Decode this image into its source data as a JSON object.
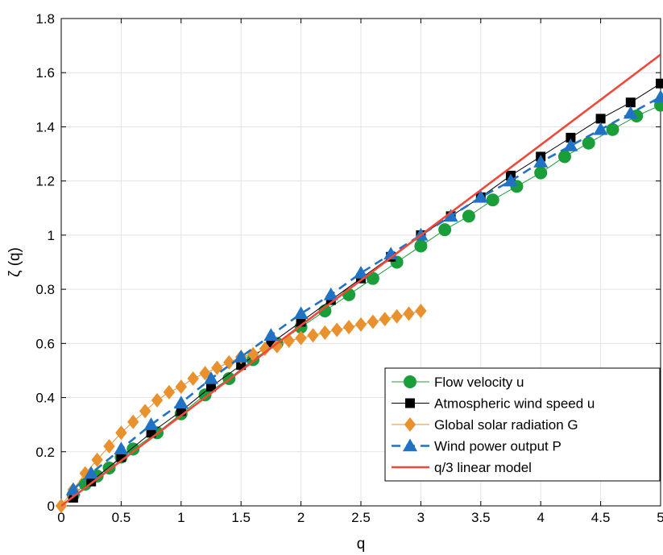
{
  "chart_data": {
    "type": "line",
    "title": "",
    "xlabel": "q",
    "ylabel": "ζ (q)",
    "xlim": [
      0,
      5
    ],
    "ylim": [
      0,
      1.8
    ],
    "xticks": [
      0,
      0.5,
      1,
      1.5,
      2,
      2.5,
      3,
      3.5,
      4,
      4.5,
      5
    ],
    "xtick_labels": [
      "0",
      "0.5",
      "1",
      "1.5",
      "2",
      "2.5",
      "3",
      "3.5",
      "4",
      "4.5",
      "5"
    ],
    "yticks": [
      0,
      0.2,
      0.4,
      0.6,
      0.8,
      1,
      1.2,
      1.4,
      1.6,
      1.8
    ],
    "ytick_labels": [
      "0",
      "0.2",
      "0.4",
      "0.6",
      "0.8",
      "1",
      "1.2",
      "1.4",
      "1.6",
      "1.8"
    ],
    "grid": true,
    "legend_position": "bottom-right",
    "series": [
      {
        "name": "Flow velocity u",
        "color": "#1a9e3a",
        "marker": "circle",
        "line_style": "solid",
        "x": [
          0.1,
          0.2,
          0.3,
          0.4,
          0.5,
          0.6,
          0.8,
          1.0,
          1.2,
          1.4,
          1.6,
          1.8,
          2.0,
          2.2,
          2.4,
          2.6,
          2.8,
          3.0,
          3.2,
          3.4,
          3.6,
          3.8,
          4.0,
          4.2,
          4.4,
          4.6,
          4.8,
          5.0
        ],
        "y": [
          0.04,
          0.08,
          0.11,
          0.14,
          0.18,
          0.21,
          0.27,
          0.34,
          0.41,
          0.47,
          0.54,
          0.6,
          0.66,
          0.72,
          0.78,
          0.84,
          0.9,
          0.96,
          1.02,
          1.07,
          1.13,
          1.18,
          1.23,
          1.29,
          1.34,
          1.39,
          1.44,
          1.48
        ]
      },
      {
        "name": "Atmospheric wind speed u",
        "color": "#000000",
        "marker": "square",
        "line_style": "solid",
        "x": [
          0.1,
          0.25,
          0.5,
          0.75,
          1.0,
          1.25,
          1.5,
          1.75,
          2.0,
          2.25,
          2.5,
          2.75,
          3.0,
          3.25,
          3.5,
          3.75,
          4.0,
          4.25,
          4.5,
          4.75,
          5.0
        ],
        "y": [
          0.03,
          0.09,
          0.18,
          0.27,
          0.35,
          0.44,
          0.52,
          0.6,
          0.68,
          0.76,
          0.84,
          0.92,
          1.0,
          1.07,
          1.14,
          1.22,
          1.29,
          1.36,
          1.43,
          1.49,
          1.56
        ]
      },
      {
        "name": "Global solar radiation G",
        "color": "#e8912e",
        "marker": "diamond",
        "line_style": "solid",
        "x": [
          0.0,
          0.1,
          0.2,
          0.3,
          0.4,
          0.5,
          0.6,
          0.7,
          0.8,
          0.9,
          1.0,
          1.1,
          1.2,
          1.3,
          1.4,
          1.5,
          1.6,
          1.7,
          1.8,
          1.9,
          2.0,
          2.1,
          2.2,
          2.3,
          2.4,
          2.5,
          2.6,
          2.7,
          2.8,
          2.9,
          3.0
        ],
        "y": [
          0.0,
          0.06,
          0.12,
          0.17,
          0.22,
          0.27,
          0.31,
          0.35,
          0.39,
          0.42,
          0.44,
          0.47,
          0.49,
          0.51,
          0.53,
          0.55,
          0.56,
          0.58,
          0.59,
          0.61,
          0.62,
          0.63,
          0.64,
          0.65,
          0.66,
          0.67,
          0.68,
          0.69,
          0.7,
          0.71,
          0.72
        ]
      },
      {
        "name": " Wind power output P",
        "color": "#1f72c4",
        "marker": "triangle",
        "line_style": "dashed",
        "x": [
          0.1,
          0.25,
          0.5,
          0.75,
          1.0,
          1.25,
          1.5,
          1.75,
          2.0,
          2.25,
          2.5,
          2.75,
          3.0,
          3.25,
          3.5,
          3.75,
          4.0,
          4.25,
          4.5,
          4.75,
          5.0
        ],
        "y": [
          0.06,
          0.12,
          0.21,
          0.3,
          0.38,
          0.47,
          0.55,
          0.63,
          0.71,
          0.78,
          0.86,
          0.93,
          1.0,
          1.07,
          1.14,
          1.2,
          1.27,
          1.33,
          1.39,
          1.45,
          1.51
        ]
      },
      {
        "name": "q/3 linear model",
        "color": "#f0493a",
        "marker": "none",
        "line_style": "solid",
        "x": [
          0,
          5
        ],
        "y": [
          0,
          1.6667
        ]
      }
    ]
  }
}
